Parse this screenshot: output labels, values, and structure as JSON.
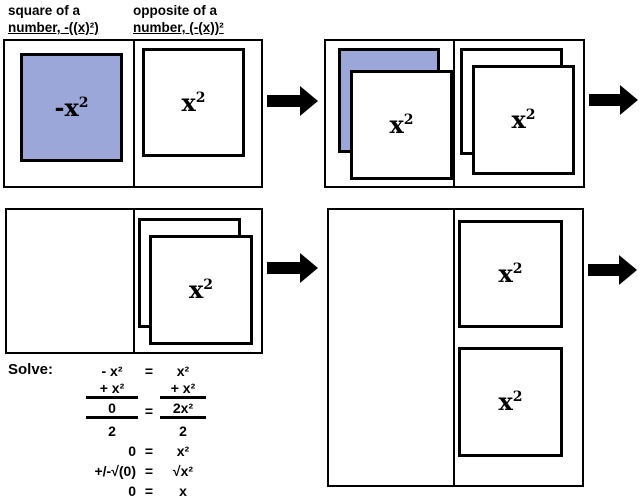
{
  "colors": {
    "highlight": "#9AA7D8",
    "line": "#000000"
  },
  "headers": {
    "left": {
      "line1": "square of a",
      "line2": "number, -((x)²)"
    },
    "right": {
      "line1": "opposite of a",
      "line2": "number, (-(x))²"
    }
  },
  "tiles": {
    "neg_x_squared": {
      "base": "-x",
      "exp": "2"
    },
    "x_squared": {
      "base": "x",
      "exp": "2"
    }
  },
  "solve": {
    "label": "Solve:",
    "rows": [
      {
        "left": "- x²",
        "op": "=",
        "right": "x²",
        "underline": false
      },
      {
        "left": "+ x²",
        "op": "",
        "right": "+ x²",
        "underline": true
      },
      {
        "left": "0",
        "op": "=",
        "right": "2x²",
        "underline": true
      },
      {
        "left": "2",
        "op": "",
        "right": "2",
        "underline": false
      },
      {
        "left": "0",
        "op": "=",
        "right": "x²",
        "underline": false
      },
      {
        "left": "+/-√(0)",
        "op": "=",
        "right": "√x²",
        "underline": false
      },
      {
        "left": "0",
        "op": "=",
        "right": "x",
        "underline": false
      }
    ]
  }
}
